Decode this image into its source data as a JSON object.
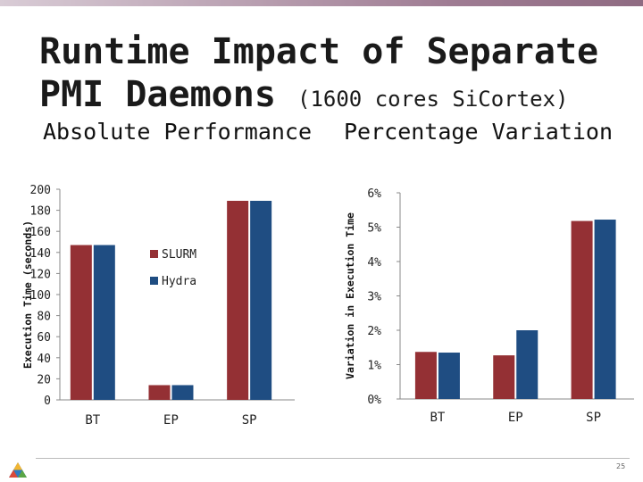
{
  "slide": {
    "title_line1": "Runtime Impact of Separate",
    "title_line2": "PMI Daemons",
    "title_suffix": "(1600 cores SiCortex)",
    "page_number": "25"
  },
  "colors": {
    "slurm": "#943034",
    "hydra": "#1f4d82",
    "axis": "#888888"
  },
  "chart_data": [
    {
      "type": "bar",
      "title": "Absolute Performance",
      "ylabel": "Execution Time (seconds)",
      "xlabel": "",
      "categories": [
        "BT",
        "EP",
        "SP"
      ],
      "yticks": [
        "0",
        "20",
        "40",
        "60",
        "80",
        "100",
        "120",
        "140",
        "160",
        "180",
        "200"
      ],
      "ylim": [
        0,
        200
      ],
      "series": [
        {
          "name": "SLURM",
          "values": [
            147,
            14,
            189
          ]
        },
        {
          "name": "Hydra",
          "values": [
            147,
            14,
            189
          ]
        }
      ],
      "legend": "right",
      "grid": false
    },
    {
      "type": "bar",
      "title": "Percentage Variation",
      "ylabel": "Variation in Execution Time",
      "xlabel": "",
      "categories": [
        "BT",
        "EP",
        "SP"
      ],
      "yticks": [
        "0%",
        "1%",
        "2%",
        "3%",
        "4%",
        "5%",
        "6%"
      ],
      "ylim": [
        0,
        6
      ],
      "series": [
        {
          "name": "SLURM",
          "values": [
            1.37,
            1.27,
            5.18
          ]
        },
        {
          "name": "Hydra",
          "values": [
            1.35,
            2.0,
            5.22
          ]
        }
      ],
      "grid": false
    }
  ]
}
